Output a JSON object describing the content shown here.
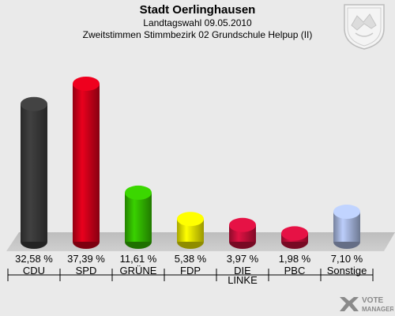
{
  "header": {
    "title": "Stadt Oerlinghausen",
    "subtitle": "Landtagswahl 09.05.2010",
    "subtitle2": "Zweitstimmen Stimmbezirk 02 Grundschule Helpup (II)"
  },
  "chart_data": {
    "type": "bar",
    "categories": [
      "CDU",
      "SPD",
      "GRÜNE",
      "FDP",
      "DIE LINKE",
      "PBC",
      "Sonstige"
    ],
    "category_lines": [
      [
        "CDU"
      ],
      [
        "SPD"
      ],
      [
        "GRÜNE"
      ],
      [
        "FDP"
      ],
      [
        "DIE",
        "LINKE"
      ],
      [
        "PBC"
      ],
      [
        "Sonstige"
      ]
    ],
    "values": [
      32.58,
      37.39,
      11.61,
      5.38,
      3.97,
      1.98,
      7.1
    ],
    "value_labels": [
      "32,58 %",
      "37,39 %",
      "11,61 %",
      "5,38 %",
      "3,97 %",
      "1,98 %",
      "7,10 %"
    ],
    "colors": [
      "#3a3a3a",
      "#d0001a",
      "#33bb00",
      "#eeea00",
      "#c8103c",
      "#c8103c",
      "#a8b8e0"
    ],
    "ylim": [
      0,
      40
    ]
  },
  "logo": {
    "text_line1": "VOTE",
    "text_line2": "MANAGER"
  }
}
